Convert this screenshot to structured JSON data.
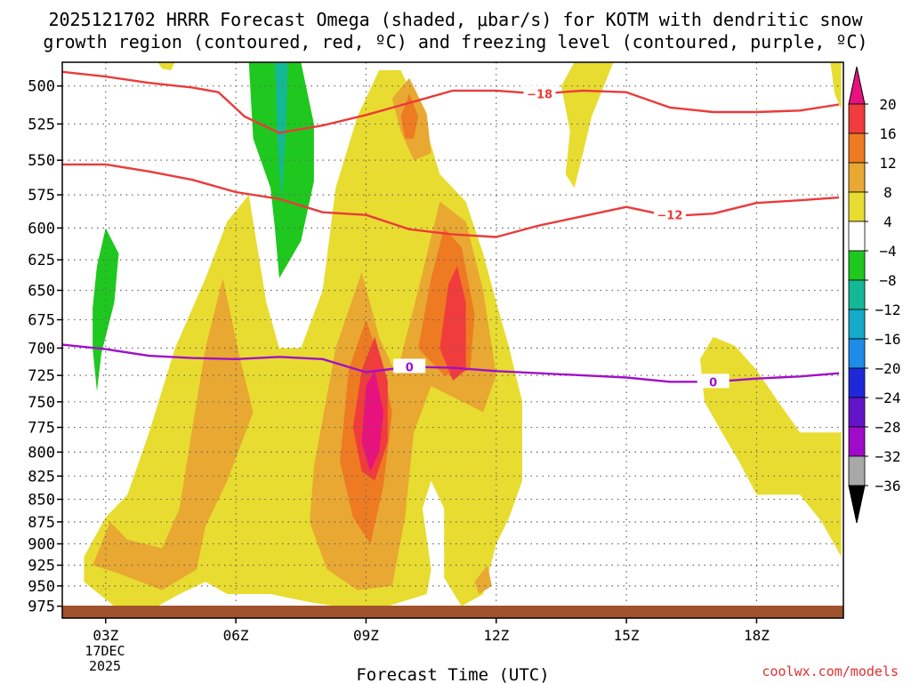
{
  "title_line1": "2025121702 HRRR Forecast Omega (shaded, μbar/s) for KOTM with dendritic snow",
  "title_line2": "growth region (contoured, red, ºC) and freezing level (contoured, purple, ºC)",
  "xlabel": "Forecast Time (UTC)",
  "credit": "coolwx.com/models",
  "colors": {
    "isotherm_red": "#ec3a3a",
    "freezing_purple": "#a010c8",
    "ground": "#a0522d",
    "grid": "#666666"
  },
  "colorbar": {
    "levels": [
      "20",
      "16",
      "12",
      "8",
      "4",
      "−4",
      "−8",
      "−12",
      "−16",
      "−20",
      "−24",
      "−28",
      "−32",
      "−36"
    ],
    "colors": [
      "#e8127e",
      "#f03c3c",
      "#ee7a22",
      "#e8a832",
      "#e8dc30",
      "#ffffff",
      "#1ec81e",
      "#14b896",
      "#14aaca",
      "#1e8ce8",
      "#1e28d8",
      "#6414c8",
      "#a00ac8",
      "#a8a8a8",
      "#000000"
    ]
  },
  "chart_data": {
    "type": "heatmap",
    "title": "2025121702 HRRR Forecast Omega (shaded, μbar/s) for KOTM with dendritic snow growth region (contoured, red, ºC) and freezing level (contoured, purple, ºC)",
    "xlabel": "Forecast Time (UTC)",
    "ylabel": "",
    "x_ticks": [
      "03Z",
      "06Z",
      "09Z",
      "12Z",
      "15Z",
      "18Z"
    ],
    "x_date_label": [
      "17DEC",
      "2025"
    ],
    "y_ticks": [
      500,
      525,
      550,
      575,
      600,
      625,
      650,
      675,
      700,
      725,
      750,
      775,
      800,
      825,
      850,
      875,
      900,
      925,
      950,
      975
    ],
    "xlim_hours": [
      2,
      20
    ],
    "ylim_mb": [
      485,
      990
    ],
    "y_scale": "log-pressure",
    "grid": true,
    "contours": [
      {
        "label": "-18",
        "color": "red",
        "points": [
          [
            2,
            491
          ],
          [
            3,
            494
          ],
          [
            4,
            498
          ],
          [
            5,
            501
          ],
          [
            5.6,
            504
          ],
          [
            6.2,
            520
          ],
          [
            7,
            531
          ],
          [
            8,
            526
          ],
          [
            9,
            519
          ],
          [
            10,
            511
          ],
          [
            11,
            503
          ],
          [
            11.5,
            503
          ],
          [
            12,
            503
          ],
          [
            13,
            505
          ],
          [
            14,
            503
          ],
          [
            15,
            504
          ],
          [
            16,
            514
          ],
          [
            17,
            517
          ],
          [
            18,
            517
          ],
          [
            19,
            516
          ],
          [
            19.9,
            512
          ]
        ]
      },
      {
        "label": "-12",
        "color": "red",
        "points": [
          [
            2,
            553
          ],
          [
            3,
            553
          ],
          [
            4,
            558
          ],
          [
            5,
            564
          ],
          [
            6,
            573
          ],
          [
            7,
            578
          ],
          [
            8,
            588
          ],
          [
            9,
            590
          ],
          [
            10,
            601
          ],
          [
            11,
            605
          ],
          [
            12,
            607
          ],
          [
            13,
            598
          ],
          [
            14,
            591
          ],
          [
            15,
            584
          ],
          [
            16,
            591
          ],
          [
            17,
            589
          ],
          [
            18,
            581
          ],
          [
            19,
            579
          ],
          [
            19.9,
            577
          ]
        ]
      },
      {
        "label": "0",
        "color": "purple",
        "points": [
          [
            2,
            697
          ],
          [
            3,
            701
          ],
          [
            4,
            707
          ],
          [
            5,
            709
          ],
          [
            6,
            710
          ],
          [
            7,
            708
          ],
          [
            8,
            710
          ],
          [
            9,
            722
          ],
          [
            10,
            717
          ],
          [
            11,
            718
          ],
          [
            12,
            721
          ],
          [
            13,
            723
          ],
          [
            14,
            725
          ],
          [
            15,
            727
          ],
          [
            16,
            731
          ],
          [
            17,
            731
          ],
          [
            18,
            728
          ],
          [
            19,
            726
          ],
          [
            19.9,
            723
          ]
        ]
      }
    ],
    "contour_labels": [
      {
        "text": "−18",
        "color": "red",
        "x": 13.0,
        "y": 505
      },
      {
        "text": "−12",
        "color": "red",
        "x": 16.0,
        "y": 590
      },
      {
        "text": "0",
        "color": "purple",
        "x": 10.0,
        "y": 717
      },
      {
        "text": "0",
        "color": "purple",
        "x": 17.0,
        "y": 731
      }
    ],
    "shaded_regions": [
      {
        "level": "4",
        "points": [
          [
            2.5,
            945
          ],
          [
            2.5,
            915
          ],
          [
            3,
            870
          ],
          [
            3.5,
            845
          ],
          [
            4,
            780
          ],
          [
            4.6,
            700
          ],
          [
            5.3,
            640
          ],
          [
            5.8,
            595
          ],
          [
            6.3,
            575
          ],
          [
            6.7,
            660
          ],
          [
            7,
            700
          ],
          [
            7.5,
            700
          ],
          [
            8,
            650
          ],
          [
            8.3,
            570
          ],
          [
            8.8,
            520
          ],
          [
            9.3,
            490
          ],
          [
            9.8,
            490
          ],
          [
            10.3,
            520
          ],
          [
            10.7,
            560
          ],
          [
            11.3,
            580
          ],
          [
            11.7,
            620
          ],
          [
            12,
            660
          ],
          [
            12.3,
            700
          ],
          [
            12.6,
            750
          ],
          [
            12.6,
            830
          ],
          [
            12.3,
            870
          ],
          [
            12,
            900
          ],
          [
            11.7,
            960
          ],
          [
            11.2,
            975
          ],
          [
            10.8,
            940
          ],
          [
            10.8,
            860
          ],
          [
            10.5,
            830
          ],
          [
            10.3,
            860
          ],
          [
            10.5,
            930
          ],
          [
            10.4,
            960
          ],
          [
            9.5,
            975
          ],
          [
            8.3,
            975
          ],
          [
            7.7,
            970
          ],
          [
            6.8,
            960
          ],
          [
            5.8,
            960
          ],
          [
            5.3,
            945
          ],
          [
            4.7,
            960
          ],
          [
            4.2,
            975
          ],
          [
            3.2,
            975
          ]
        ]
      },
      {
        "level": "4",
        "points": [
          [
            13.5,
            500
          ],
          [
            13.8,
            485
          ],
          [
            14.7,
            485
          ],
          [
            14.2,
            520
          ],
          [
            14.0,
            545
          ],
          [
            13.8,
            570
          ],
          [
            13.6,
            560
          ],
          [
            13.7,
            530
          ]
        ]
      },
      {
        "level": "4",
        "points": [
          [
            19.7,
            485
          ],
          [
            19.95,
            485
          ],
          [
            19.95,
            515
          ],
          [
            19.8,
            505
          ]
        ]
      },
      {
        "level": "4",
        "points": [
          [
            4.2,
            485
          ],
          [
            4.6,
            485
          ],
          [
            4.5,
            490
          ],
          [
            4.3,
            489
          ]
        ]
      },
      {
        "level": "4",
        "points": [
          [
            16.7,
            710
          ],
          [
            17,
            690
          ],
          [
            17.5,
            698
          ],
          [
            18,
            720
          ],
          [
            18.5,
            750
          ],
          [
            19,
            780
          ],
          [
            19.95,
            780
          ],
          [
            19.95,
            915
          ],
          [
            19.5,
            875
          ],
          [
            19.0,
            845
          ],
          [
            18.0,
            845
          ],
          [
            17.6,
            810
          ],
          [
            17.2,
            780
          ],
          [
            16.8,
            750
          ]
        ]
      },
      {
        "level": "8",
        "points": [
          [
            2.7,
            925
          ],
          [
            3.1,
            875
          ],
          [
            3.5,
            895
          ],
          [
            4.3,
            905
          ],
          [
            4.7,
            860
          ],
          [
            5,
            775
          ],
          [
            5.3,
            700
          ],
          [
            5.7,
            640
          ],
          [
            6.1,
            710
          ],
          [
            6.4,
            760
          ],
          [
            5.8,
            830
          ],
          [
            5.3,
            880
          ],
          [
            5.1,
            930
          ],
          [
            4.3,
            955
          ],
          [
            3.3,
            935
          ]
        ]
      },
      {
        "level": "8",
        "points": [
          [
            7.8,
            815
          ],
          [
            8.3,
            700
          ],
          [
            8.9,
            635
          ],
          [
            9.3,
            690
          ],
          [
            9.7,
            725
          ],
          [
            10.2,
            650
          ],
          [
            10.7,
            580
          ],
          [
            11.3,
            595
          ],
          [
            11.7,
            650
          ],
          [
            12.0,
            725
          ],
          [
            11.7,
            760
          ],
          [
            10.5,
            735
          ],
          [
            10.1,
            780
          ],
          [
            9.9,
            870
          ],
          [
            9.6,
            950
          ],
          [
            8.8,
            955
          ],
          [
            8.1,
            930
          ],
          [
            7.7,
            875
          ]
        ]
      },
      {
        "level": "8",
        "points": [
          [
            9.6,
            508
          ],
          [
            10.0,
            495
          ],
          [
            10.4,
            518
          ],
          [
            10.5,
            545
          ],
          [
            10.1,
            550
          ],
          [
            9.8,
            530
          ]
        ]
      },
      {
        "level": "8",
        "points": [
          [
            11.5,
            945
          ],
          [
            11.8,
            925
          ],
          [
            11.9,
            950
          ],
          [
            11.6,
            960
          ]
        ]
      },
      {
        "level": "12",
        "points": [
          [
            8.4,
            810
          ],
          [
            8.6,
            720
          ],
          [
            9.0,
            675
          ],
          [
            9.4,
            720
          ],
          [
            9.6,
            760
          ],
          [
            9.4,
            835
          ],
          [
            9.1,
            900
          ],
          [
            8.7,
            870
          ]
        ]
      },
      {
        "level": "12",
        "points": [
          [
            10.2,
            700
          ],
          [
            10.5,
            640
          ],
          [
            10.8,
            600
          ],
          [
            11.2,
            615
          ],
          [
            11.5,
            670
          ],
          [
            11.4,
            720
          ],
          [
            10.8,
            725
          ]
        ]
      },
      {
        "level": "12",
        "points": [
          [
            9.8,
            520
          ],
          [
            10.0,
            505
          ],
          [
            10.2,
            520
          ],
          [
            10.1,
            535
          ],
          [
            9.9,
            535
          ]
        ]
      },
      {
        "level": "16",
        "points": [
          [
            8.7,
            775
          ],
          [
            8.9,
            720
          ],
          [
            9.2,
            690
          ],
          [
            9.5,
            730
          ],
          [
            9.5,
            790
          ],
          [
            9.2,
            830
          ],
          [
            8.9,
            820
          ]
        ]
      },
      {
        "level": "16",
        "points": [
          [
            10.7,
            700
          ],
          [
            10.9,
            645
          ],
          [
            11.1,
            630
          ],
          [
            11.3,
            660
          ],
          [
            11.3,
            720
          ],
          [
            11.0,
            730
          ]
        ]
      },
      {
        "level": "20",
        "points": [
          [
            8.9,
            790
          ],
          [
            9.0,
            735
          ],
          [
            9.2,
            720
          ],
          [
            9.4,
            760
          ],
          [
            9.3,
            800
          ],
          [
            9.1,
            820
          ]
        ]
      },
      {
        "level": "-4",
        "points": [
          [
            6.3,
            485
          ],
          [
            7.5,
            485
          ],
          [
            7.8,
            525
          ],
          [
            7.8,
            565
          ],
          [
            7.5,
            610
          ],
          [
            7.0,
            640
          ],
          [
            6.9,
            600
          ],
          [
            6.8,
            570
          ],
          [
            6.4,
            535
          ]
        ]
      },
      {
        "level": "-4",
        "points": [
          [
            2.7,
            665
          ],
          [
            2.8,
            630
          ],
          [
            3.0,
            600
          ],
          [
            3.3,
            620
          ],
          [
            3.2,
            660
          ],
          [
            2.9,
            705
          ],
          [
            2.8,
            740
          ],
          [
            2.7,
            700
          ]
        ]
      },
      {
        "level": "-8",
        "points": [
          [
            6.9,
            485
          ],
          [
            7.2,
            485
          ],
          [
            7.15,
            530
          ],
          [
            7.05,
            580
          ],
          [
            6.95,
            530
          ]
        ]
      }
    ]
  }
}
